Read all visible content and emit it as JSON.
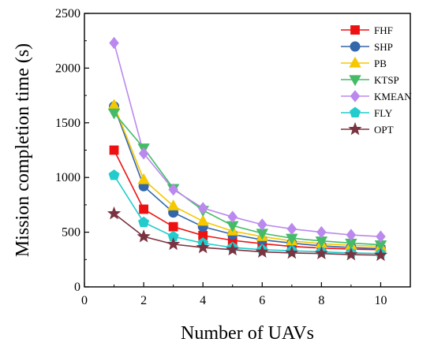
{
  "chart_data": {
    "type": "line",
    "xlabel": "Number of UAVs",
    "ylabel": "Mission completion time (s)",
    "xlim": [
      0,
      11
    ],
    "ylim": [
      0,
      2500
    ],
    "xticks": [
      0,
      2,
      4,
      6,
      8,
      10
    ],
    "yticks": [
      0,
      500,
      1000,
      1500,
      2000,
      2500
    ],
    "grid": false,
    "legend_position": "top-right",
    "x": [
      1,
      2,
      3,
      4,
      5,
      6,
      7,
      8,
      9,
      10
    ],
    "series": [
      {
        "name": "FHF",
        "color": "#ee1111",
        "marker": "square",
        "values": [
          1250,
          710,
          550,
          470,
          425,
          395,
          370,
          355,
          345,
          340
        ]
      },
      {
        "name": "SHP",
        "color": "#3366aa",
        "marker": "circle",
        "values": [
          1650,
          920,
          680,
          550,
          480,
          430,
          400,
          375,
          360,
          350
        ]
      },
      {
        "name": "PB",
        "color": "#f5c800",
        "marker": "triangle-up",
        "values": [
          1660,
          980,
          740,
          600,
          510,
          460,
          420,
          395,
          380,
          370
        ]
      },
      {
        "name": "KTSP",
        "color": "#44bb66",
        "marker": "triangle-down",
        "values": [
          1590,
          1270,
          900,
          700,
          560,
          490,
          445,
          420,
          400,
          385
        ]
      },
      {
        "name": "KMEAN",
        "color": "#bb88ee",
        "marker": "diamond",
        "values": [
          2230,
          1220,
          890,
          720,
          640,
          570,
          530,
          500,
          475,
          460
        ]
      },
      {
        "name": "FLY",
        "color": "#22cccc",
        "marker": "pentagon",
        "values": [
          1020,
          590,
          460,
          400,
          360,
          340,
          330,
          320,
          310,
          305
        ]
      },
      {
        "name": "OPT",
        "color": "#7a3340",
        "marker": "star",
        "values": [
          670,
          460,
          390,
          360,
          340,
          320,
          310,
          305,
          295,
          290
        ]
      }
    ]
  }
}
